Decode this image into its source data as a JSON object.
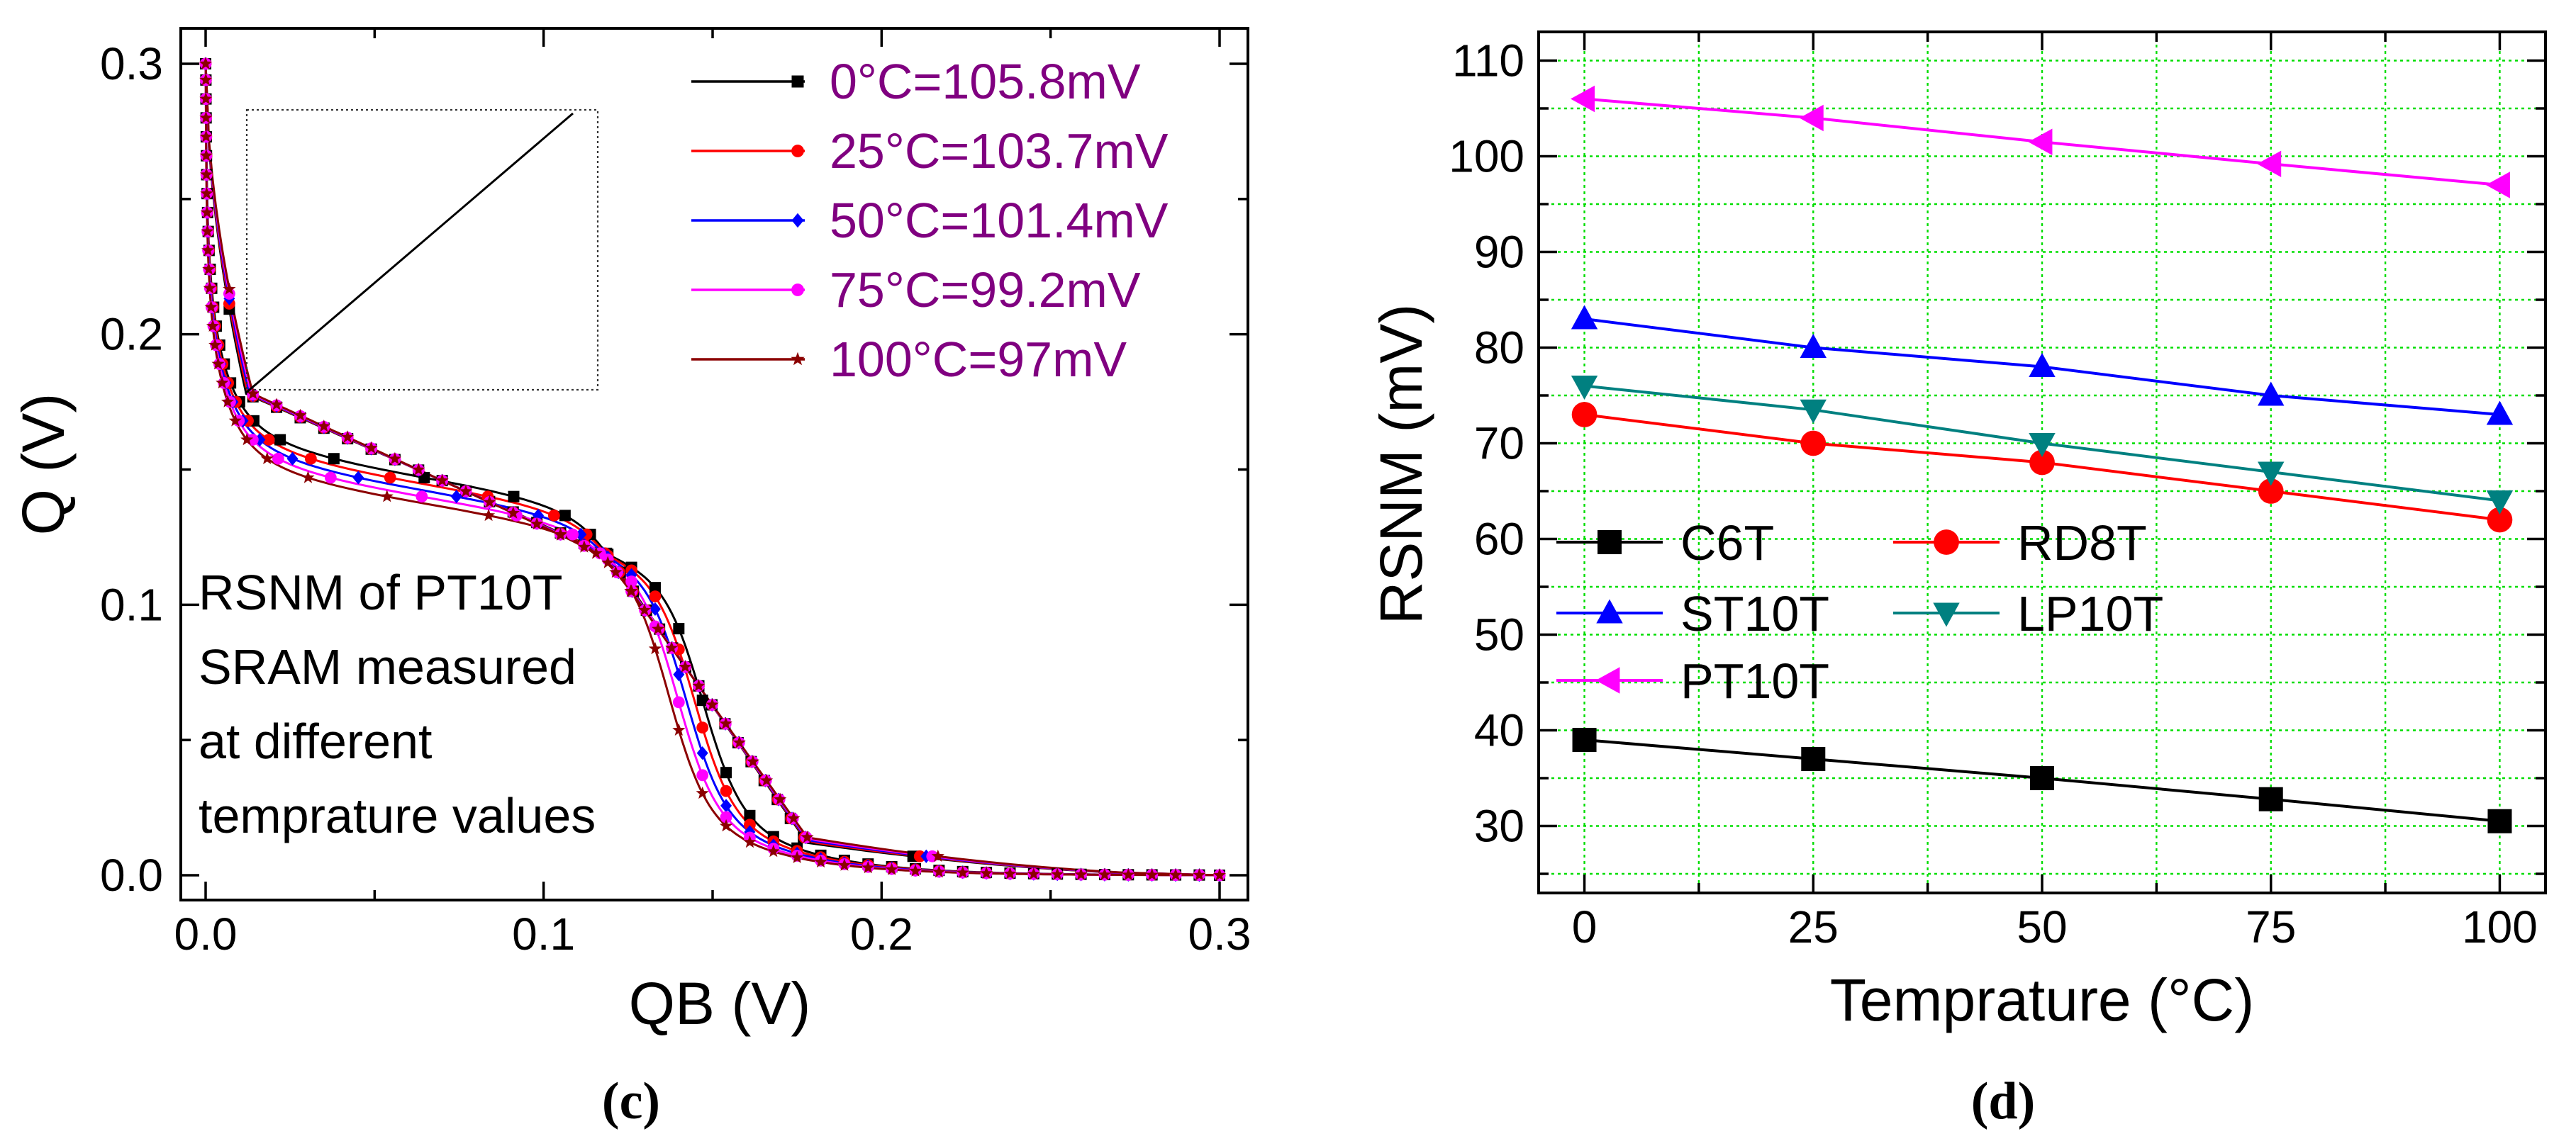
{
  "chart_data": [
    {
      "panel": "c",
      "type": "line",
      "xlabel": "QB (V)",
      "ylabel": "Q (V)",
      "xlim": [
        0.0,
        0.3
      ],
      "ylim": [
        0.0,
        0.3
      ],
      "xticks": [
        "0.0",
        "0.1",
        "0.2",
        "0.3"
      ],
      "yticks": [
        "0.0",
        "0.1",
        "0.2",
        "0.3"
      ],
      "annotation": [
        "RSNM of PT10T",
        "SRAM measured",
        "at different",
        "temprature values"
      ],
      "series": [
        {
          "name": "0°C=105.8mV",
          "temp_c": 0,
          "rsnm_mv": 105.8,
          "color": "#000000",
          "marker": "square",
          "vm": 0.1465,
          "curvature": 0.38
        },
        {
          "name": "25°C=103.7mV",
          "temp_c": 25,
          "rsnm_mv": 103.7,
          "color": "#ff0000",
          "marker": "circle",
          "vm": 0.144,
          "curvature": 0.4
        },
        {
          "name": "50°C=101.4mV",
          "temp_c": 50,
          "rsnm_mv": 101.4,
          "color": "#0000ff",
          "marker": "diamond",
          "vm": 0.1415,
          "curvature": 0.42
        },
        {
          "name": "75°C=99.2mV",
          "temp_c": 75,
          "rsnm_mv": 99.2,
          "color": "#ff00ff",
          "marker": "circle",
          "vm": 0.139,
          "curvature": 0.44
        },
        {
          "name": "100°C=97mV",
          "temp_c": 100,
          "rsnm_mv": 97,
          "color": "#8b0000",
          "marker": "star",
          "vm": 0.1365,
          "curvature": 0.46
        }
      ]
    },
    {
      "panel": "d",
      "type": "line",
      "xlabel": "Temprature (°C)",
      "ylabel": "RSNM (mV)",
      "xlim": [
        -5,
        105
      ],
      "ylim": [
        23,
        113
      ],
      "x": [
        0,
        25,
        50,
        75,
        100
      ],
      "xticks": [
        "0",
        "25",
        "50",
        "75",
        "100"
      ],
      "yticks": [
        "30",
        "40",
        "50",
        "60",
        "70",
        "80",
        "90",
        "100",
        "110"
      ],
      "grid": true,
      "series": [
        {
          "name": "C6T",
          "color": "#000000",
          "marker": "square",
          "values": [
            39,
            37,
            35,
            32.8,
            30.5
          ]
        },
        {
          "name": "RD8T",
          "color": "#ff0000",
          "marker": "circle",
          "values": [
            73,
            70,
            68,
            65,
            62
          ]
        },
        {
          "name": "ST10T",
          "color": "#0000ff",
          "marker": "triangle-up",
          "values": [
            83,
            80,
            78,
            75,
            73
          ]
        },
        {
          "name": "LP10T",
          "color": "#008080",
          "marker": "triangle-down",
          "values": [
            76,
            73.5,
            70,
            67,
            64
          ]
        },
        {
          "name": "PT10T",
          "color": "#ff00ff",
          "marker": "triangle-left",
          "values": [
            106,
            104,
            101.5,
            99.2,
            97
          ]
        }
      ]
    }
  ],
  "labels": {
    "panel_c": "(c)",
    "panel_d": "(d)"
  }
}
